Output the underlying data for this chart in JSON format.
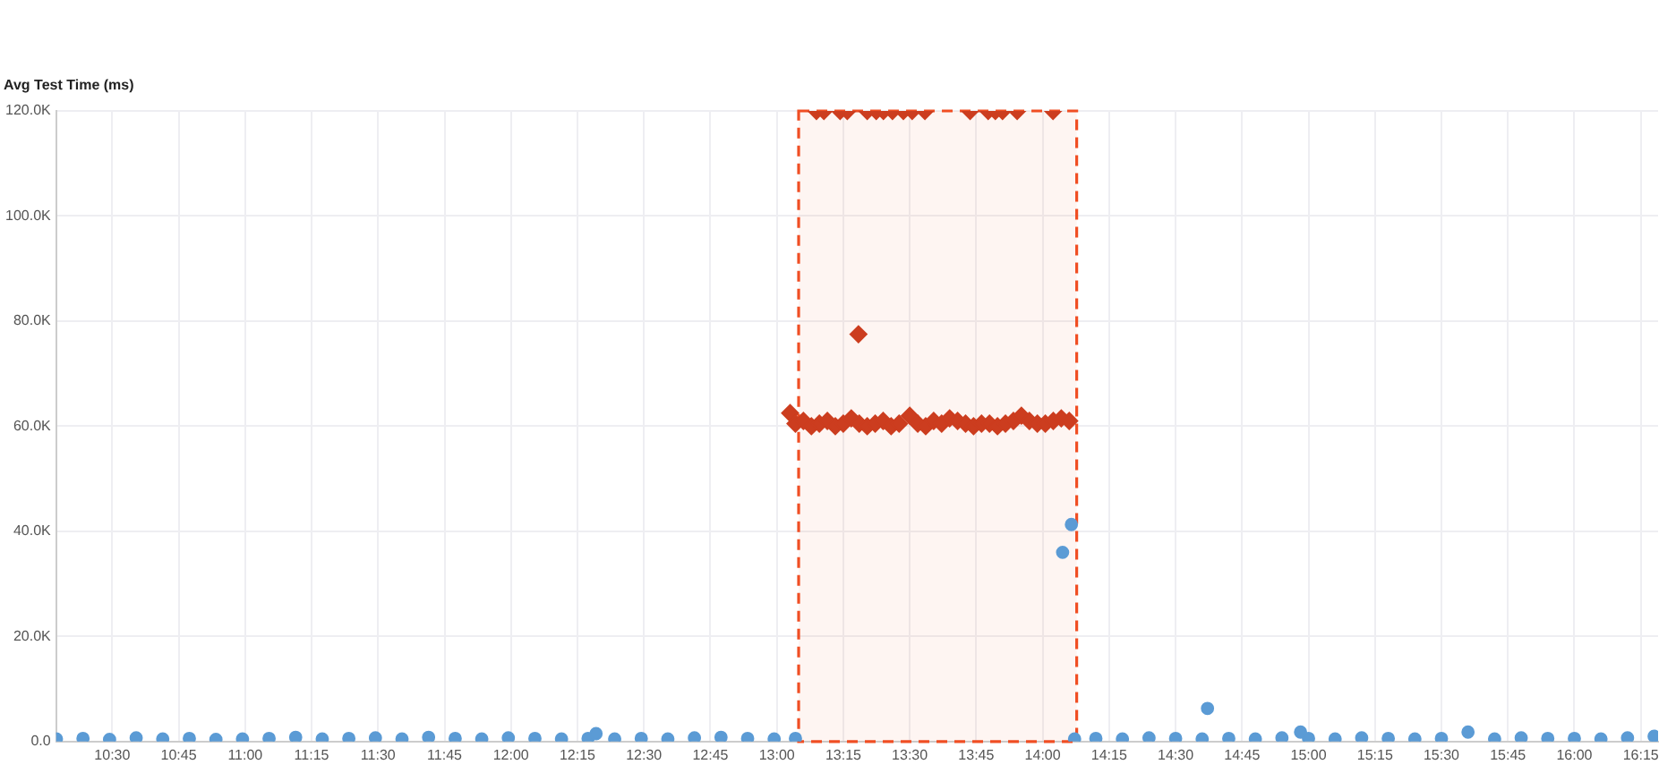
{
  "chart_data": {
    "type": "scatter",
    "ylabel": "Avg Test Time (ms)",
    "xlim": [
      10.289,
      16.315
    ],
    "xticks": [
      {
        "value": 10.5,
        "label": "10:30"
      },
      {
        "value": 10.75,
        "label": "10:45"
      },
      {
        "value": 11,
        "label": "11:00"
      },
      {
        "value": 11.25,
        "label": "11:15"
      },
      {
        "value": 11.5,
        "label": "11:30"
      },
      {
        "value": 11.75,
        "label": "11:45"
      },
      {
        "value": 12,
        "label": "12:00"
      },
      {
        "value": 12.25,
        "label": "12:15"
      },
      {
        "value": 12.5,
        "label": "12:30"
      },
      {
        "value": 12.75,
        "label": "12:45"
      },
      {
        "value": 13,
        "label": "13:00"
      },
      {
        "value": 13.25,
        "label": "13:15"
      },
      {
        "value": 13.5,
        "label": "13:30"
      },
      {
        "value": 13.75,
        "label": "13:45"
      },
      {
        "value": 14,
        "label": "14:00"
      },
      {
        "value": 14.25,
        "label": "14:15"
      },
      {
        "value": 14.5,
        "label": "14:30"
      },
      {
        "value": 14.75,
        "label": "14:45"
      },
      {
        "value": 15,
        "label": "15:00"
      },
      {
        "value": 15.25,
        "label": "15:15"
      },
      {
        "value": 15.5,
        "label": "15:30"
      },
      {
        "value": 15.75,
        "label": "15:45"
      },
      {
        "value": 16,
        "label": "16:00"
      },
      {
        "value": 16.25,
        "label": "16:15"
      }
    ],
    "ylim": [
      0,
      120000
    ],
    "yticks": [
      {
        "value": 0,
        "label": "0.0"
      },
      {
        "value": 20000,
        "label": "20.0K"
      },
      {
        "value": 40000,
        "label": "40.0K"
      },
      {
        "value": 60000,
        "label": "60.0K"
      },
      {
        "value": 80000,
        "label": "80.0K"
      },
      {
        "value": 100000,
        "label": "100.0K"
      },
      {
        "value": 120000,
        "label": "120.0K"
      }
    ],
    "grid": true,
    "bands": [
      {
        "axis": "x",
        "from": 13.082,
        "to": 14.128,
        "color": "#f04e23"
      }
    ],
    "series": [
      {
        "color": "#5b9bd5",
        "marker": "circle",
        "x": [
          10.29,
          10.39,
          10.49,
          10.59,
          10.69,
          10.79,
          10.89,
          10.99,
          11.09,
          11.19,
          11.29,
          11.39,
          11.49,
          11.59,
          11.69,
          11.79,
          11.89,
          11.99,
          12.09,
          12.19,
          12.29,
          12.32,
          12.39,
          12.49,
          12.59,
          12.69,
          12.79,
          12.89,
          12.99,
          13.07,
          14.075,
          14.108,
          14.12,
          14.2,
          14.3,
          14.4,
          14.5,
          14.6,
          14.62,
          14.7,
          14.8,
          14.9,
          14.97,
          15.0,
          15.1,
          15.2,
          15.3,
          15.4,
          15.5,
          15.6,
          15.7,
          15.8,
          15.9,
          16.0,
          16.1,
          16.2,
          16.3
        ],
        "values": [
          500,
          600,
          400,
          700,
          500,
          600,
          400,
          500,
          600,
          800,
          500,
          600,
          700,
          500,
          800,
          600,
          500,
          700,
          600,
          500,
          600,
          1500,
          500,
          600,
          500,
          700,
          800,
          600,
          500,
          600,
          36000,
          41300,
          500,
          600,
          500,
          700,
          600,
          500,
          6300,
          600,
          500,
          700,
          1800,
          600,
          500,
          700,
          600,
          500,
          600,
          1800,
          500,
          700,
          600,
          600,
          500,
          700,
          1000
        ]
      },
      {
        "color": "#cc3d1f",
        "marker": "diamond",
        "x": [
          13.05,
          13.07,
          13.1,
          13.13,
          13.16,
          13.19,
          13.22,
          13.25,
          13.28,
          13.31,
          13.34,
          13.37,
          13.4,
          13.43,
          13.46,
          13.5,
          13.53,
          13.56,
          13.59,
          13.62,
          13.65,
          13.68,
          13.71,
          13.74,
          13.77,
          13.8,
          13.83,
          13.86,
          13.89,
          13.92,
          13.95,
          13.98,
          14.01,
          14.04,
          14.07,
          14.1,
          13.307,
          13.149,
          13.177,
          13.238,
          13.265,
          13.34,
          13.374,
          13.401,
          13.435,
          13.476,
          13.509,
          13.557,
          13.727,
          13.795,
          13.822,
          13.849,
          13.904,
          14.039
        ],
        "values": [
          62500,
          60500,
          61000,
          60000,
          60500,
          61000,
          60000,
          60500,
          61500,
          60500,
          60000,
          60500,
          61000,
          60000,
          60500,
          62000,
          60500,
          60000,
          61000,
          60500,
          61500,
          61000,
          60500,
          60000,
          60500,
          60500,
          60000,
          60500,
          61000,
          62000,
          61000,
          60500,
          60500,
          61000,
          61500,
          61000,
          77500,
          120000,
          120000,
          120000,
          120000,
          120000,
          120000,
          120000,
          120000,
          120000,
          120000,
          120000,
          120000,
          120000,
          120000,
          120000,
          120000,
          120000
        ]
      }
    ]
  }
}
